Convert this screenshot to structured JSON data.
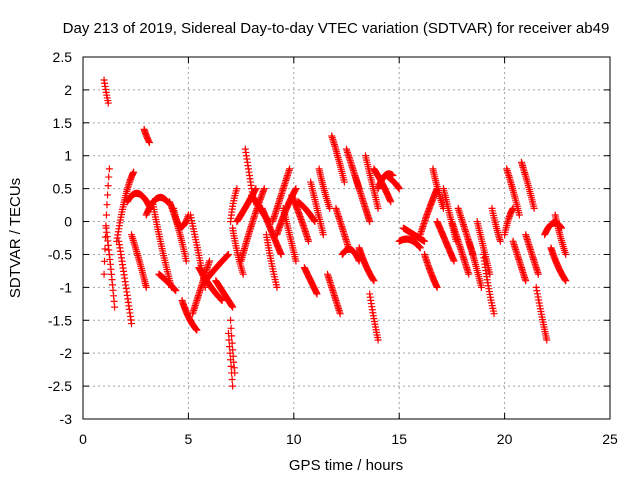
{
  "chart_data": {
    "type": "scatter",
    "title": "Day 213 of 2019, Sidereal Day-to-day VTEC variation (SDTVAR) for receiver ab49",
    "xlabel": "GPS time / hours",
    "ylabel": "SDTVAR / TECUs",
    "xlim": [
      0,
      25
    ],
    "ylim": [
      -3,
      2.5
    ],
    "xticks": [
      0,
      5,
      10,
      15,
      20,
      25
    ],
    "xtick_labels": [
      "0",
      "5",
      "10",
      "15",
      "20",
      "25"
    ],
    "yticks": [
      -3,
      -2.5,
      -2,
      -1.5,
      -1,
      -0.5,
      0,
      0.5,
      1,
      1.5,
      2,
      2.5
    ],
    "ytick_labels": [
      "-3",
      "-2.5",
      "-2",
      "-1.5",
      "-1",
      "-0.5",
      "0",
      "0.5",
      "1",
      "1.5",
      "2",
      "2.5"
    ],
    "grid": true,
    "marker": "+",
    "series": [
      {
        "name": "SDTVAR",
        "color": "#ff0000",
        "arcs": [
          {
            "x": [
              1.0,
              1.1,
              1.2
            ],
            "y": [
              2.15,
              1.95,
              1.8
            ]
          },
          {
            "x": [
              1.0,
              1.1,
              1.25
            ],
            "y": [
              -0.8,
              0.2,
              0.8
            ]
          },
          {
            "x": [
              1.1,
              1.3,
              1.5
            ],
            "y": [
              -0.1,
              -0.6,
              -1.3
            ]
          },
          {
            "x": [
              1.6,
              2.0,
              2.4
            ],
            "y": [
              -0.3,
              0.5,
              0.75
            ]
          },
          {
            "x": [
              1.7,
              2.0,
              2.3
            ],
            "y": [
              -0.3,
              -0.9,
              -1.55
            ]
          },
          {
            "x": [
              2.1,
              2.6,
              3.2
            ],
            "y": [
              0.3,
              0.6,
              0.2
            ]
          },
          {
            "x": [
              2.3,
              2.7,
              3.0
            ],
            "y": [
              -0.2,
              -0.6,
              -1.0
            ]
          },
          {
            "x": [
              2.9,
              3.0,
              3.15
            ],
            "y": [
              1.4,
              1.3,
              1.2
            ]
          },
          {
            "x": [
              3.0,
              3.5,
              4.0
            ],
            "y": [
              0.1,
              0.5,
              0.3
            ]
          },
          {
            "x": [
              3.3,
              3.7,
              4.2
            ],
            "y": [
              0.3,
              -0.4,
              -1.0
            ]
          },
          {
            "x": [
              3.6,
              4.0,
              4.4
            ],
            "y": [
              -0.8,
              -0.9,
              -1.05
            ]
          },
          {
            "x": [
              4.1,
              4.5,
              4.9
            ],
            "y": [
              0.3,
              0.0,
              -0.6
            ]
          },
          {
            "x": [
              4.3,
              4.6,
              5.0
            ],
            "y": [
              0.2,
              -0.3,
              0.1
            ]
          },
          {
            "x": [
              4.7,
              5.0,
              5.4
            ],
            "y": [
              -1.2,
              -1.5,
              -1.65
            ]
          },
          {
            "x": [
              5.1,
              5.5,
              5.8
            ],
            "y": [
              0.1,
              -0.5,
              -1.0
            ]
          },
          {
            "x": [
              5.2,
              5.6,
              6.0
            ],
            "y": [
              -1.4,
              -1.0,
              -0.6
            ]
          },
          {
            "x": [
              5.5,
              6.0,
              6.6
            ],
            "y": [
              -0.7,
              -1.0,
              -1.2
            ]
          },
          {
            "x": [
              5.8,
              6.3,
              6.9
            ],
            "y": [
              -0.9,
              -0.7,
              -0.5
            ]
          },
          {
            "x": [
              6.3,
              6.7,
              7.1
            ],
            "y": [
              -0.9,
              -1.1,
              -1.3
            ]
          },
          {
            "x": [
              6.9,
              7.0,
              7.1
            ],
            "y": [
              -1.7,
              -2.1,
              -2.5
            ]
          },
          {
            "x": [
              7.0,
              7.1,
              7.2
            ],
            "y": [
              -1.5,
              -2.0,
              -2.3
            ]
          },
          {
            "x": [
              7.0,
              7.1,
              7.3
            ],
            "y": [
              0.0,
              0.3,
              0.5
            ]
          },
          {
            "x": [
              7.1,
              7.3,
              7.6
            ],
            "y": [
              -0.1,
              -0.5,
              -0.8
            ]
          },
          {
            "x": [
              7.3,
              7.7,
              8.2
            ],
            "y": [
              0.0,
              0.2,
              0.5
            ]
          },
          {
            "x": [
              7.5,
              8.0,
              8.6
            ],
            "y": [
              -0.6,
              0.0,
              0.5
            ]
          },
          {
            "x": [
              7.7,
              7.9,
              8.1
            ],
            "y": [
              1.1,
              0.7,
              0.3
            ]
          },
          {
            "x": [
              8.0,
              8.4,
              8.8
            ],
            "y": [
              0.4,
              0.2,
              0.0
            ]
          },
          {
            "x": [
              8.5,
              9.0,
              9.4
            ],
            "y": [
              0.2,
              -0.2,
              -0.5
            ]
          },
          {
            "x": [
              8.7,
              8.9,
              9.2
            ],
            "y": [
              -0.2,
              -0.6,
              -1.0
            ]
          },
          {
            "x": [
              9.0,
              9.4,
              9.8
            ],
            "y": [
              0.0,
              0.4,
              0.8
            ]
          },
          {
            "x": [
              9.2,
              9.6,
              10.1
            ],
            "y": [
              -0.2,
              0.2,
              0.5
            ]
          },
          {
            "x": [
              9.5,
              9.8,
              10.1
            ],
            "y": [
              0.2,
              -0.2,
              -0.6
            ]
          },
          {
            "x": [
              9.9,
              10.3,
              10.7
            ],
            "y": [
              0.4,
              0.1,
              -0.3
            ]
          },
          {
            "x": [
              10.2,
              10.6,
              11.0
            ],
            "y": [
              0.3,
              0.2,
              0.0
            ]
          },
          {
            "x": [
              10.5,
              10.8,
              11.1
            ],
            "y": [
              -0.7,
              -0.9,
              -1.1
            ]
          },
          {
            "x": [
              10.8,
              11.1,
              11.4
            ],
            "y": [
              0.6,
              0.2,
              -0.2
            ]
          },
          {
            "x": [
              11.2,
              11.4,
              11.7
            ],
            "y": [
              0.8,
              0.5,
              0.2
            ]
          },
          {
            "x": [
              11.6,
              11.9,
              12.2
            ],
            "y": [
              -0.8,
              -1.1,
              -1.4
            ]
          },
          {
            "x": [
              11.8,
              12.1,
              12.4
            ],
            "y": [
              1.3,
              1.0,
              0.6
            ]
          },
          {
            "x": [
              12.0,
              12.3,
              12.6
            ],
            "y": [
              0.2,
              -0.1,
              -0.4
            ]
          },
          {
            "x": [
              12.3,
              12.7,
              13.1
            ],
            "y": [
              -0.5,
              -0.3,
              -0.6
            ]
          },
          {
            "x": [
              12.5,
              12.8,
              13.1
            ],
            "y": [
              1.1,
              0.8,
              0.5
            ]
          },
          {
            "x": [
              12.9,
              13.3,
              13.6
            ],
            "y": [
              0.7,
              0.3,
              0.0
            ]
          },
          {
            "x": [
              13.1,
              13.4,
              13.8
            ],
            "y": [
              -0.4,
              -0.7,
              -0.9
            ]
          },
          {
            "x": [
              13.4,
              13.7,
              14.0
            ],
            "y": [
              1.0,
              0.6,
              0.2
            ]
          },
          {
            "x": [
              13.6,
              13.8,
              14.0
            ],
            "y": [
              -1.1,
              -1.5,
              -1.8
            ]
          },
          {
            "x": [
              13.8,
              14.2,
              14.6
            ],
            "y": [
              0.8,
              0.6,
              0.3
            ]
          },
          {
            "x": [
              14.0,
              14.3,
              14.7
            ],
            "y": [
              0.5,
              0.8,
              0.7
            ]
          },
          {
            "x": [
              14.4,
              14.8,
              15.0
            ],
            "y": [
              0.7,
              0.6,
              0.5
            ]
          },
          {
            "x": [
              15.0,
              15.5,
              16.0
            ],
            "y": [
              -0.3,
              -0.2,
              -0.4
            ]
          },
          {
            "x": [
              15.2,
              15.7,
              16.2
            ],
            "y": [
              -0.1,
              -0.2,
              -0.3
            ]
          },
          {
            "x": [
              16.0,
              16.4,
              16.8
            ],
            "y": [
              -0.2,
              0.2,
              0.5
            ]
          },
          {
            "x": [
              16.2,
              16.5,
              16.8
            ],
            "y": [
              -0.5,
              -0.8,
              -1.0
            ]
          },
          {
            "x": [
              16.6,
              16.8,
              17.1
            ],
            "y": [
              0.8,
              0.5,
              0.2
            ]
          },
          {
            "x": [
              16.8,
              17.2,
              17.6
            ],
            "y": [
              0.0,
              -0.3,
              -0.6
            ]
          },
          {
            "x": [
              17.1,
              17.4,
              17.7
            ],
            "y": [
              0.5,
              0.1,
              -0.3
            ]
          },
          {
            "x": [
              17.5,
              17.9,
              18.3
            ],
            "y": [
              0.0,
              -0.4,
              -0.8
            ]
          },
          {
            "x": [
              17.8,
              18.2,
              18.5
            ],
            "y": [
              0.2,
              -0.2,
              -0.5
            ]
          },
          {
            "x": [
              18.3,
              18.6,
              18.9
            ],
            "y": [
              -0.3,
              -0.6,
              -1.0
            ]
          },
          {
            "x": [
              18.7,
              19.0,
              19.3
            ],
            "y": [
              0.0,
              -0.4,
              -0.8
            ]
          },
          {
            "x": [
              19.0,
              19.2,
              19.5
            ],
            "y": [
              -0.5,
              -1.0,
              -1.4
            ]
          },
          {
            "x": [
              19.4,
              19.6,
              19.8
            ],
            "y": [
              0.2,
              -0.1,
              -0.3
            ]
          },
          {
            "x": [
              20.0,
              20.2,
              20.4
            ],
            "y": [
              -0.2,
              0.1,
              0.2
            ]
          },
          {
            "x": [
              20.1,
              20.4,
              20.7
            ],
            "y": [
              0.8,
              0.5,
              0.1
            ]
          },
          {
            "x": [
              20.4,
              20.7,
              21.0
            ],
            "y": [
              -0.3,
              -0.6,
              -0.9
            ]
          },
          {
            "x": [
              20.8,
              21.1,
              21.4
            ],
            "y": [
              0.9,
              0.6,
              0.2
            ]
          },
          {
            "x": [
              21.0,
              21.3,
              21.6
            ],
            "y": [
              -0.2,
              -0.5,
              -0.8
            ]
          },
          {
            "x": [
              21.5,
              21.8,
              22.0
            ],
            "y": [
              -1.0,
              -1.5,
              -1.8
            ]
          },
          {
            "x": [
              21.9,
              22.3,
              22.7
            ],
            "y": [
              -0.2,
              0.1,
              -0.1
            ]
          },
          {
            "x": [
              22.2,
              22.5,
              22.9
            ],
            "y": [
              -0.4,
              -0.7,
              -0.9
            ]
          },
          {
            "x": [
              22.4,
              22.6,
              22.9
            ],
            "y": [
              0.1,
              -0.2,
              -0.5
            ]
          }
        ]
      }
    ]
  }
}
